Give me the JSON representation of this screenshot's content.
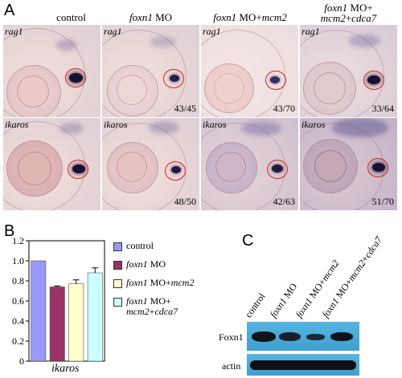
{
  "panel_a": {
    "letter": "A",
    "columns": [
      {
        "label": "control"
      },
      {
        "label_italic": "foxn1",
        "label_rest": " MO"
      },
      {
        "label_italic": "foxn1",
        "label_rest": " MO+",
        "label_italic2": "mcm2"
      },
      {
        "line1_italic": "foxn1",
        "line1_rest": " MO+",
        "line2_italic": "mcm2",
        "line2_rest": "+",
        "line2_italic2": "cdca7"
      }
    ],
    "rows": [
      {
        "gene": "rag1",
        "counts": [
          "",
          "43/45",
          "43/70",
          "33/64"
        ]
      },
      {
        "gene": "ikaros",
        "counts": [
          "",
          "48/50",
          "42/63",
          "51/70"
        ]
      }
    ]
  },
  "panel_b": {
    "letter": "B",
    "chart_data": {
      "type": "bar",
      "categories": [
        "control",
        "foxn1 MO",
        "foxn1 MO+mcm2",
        "foxn1 MO+mcm2+cdca7"
      ],
      "values": [
        1.0,
        0.74,
        0.77,
        0.88
      ],
      "errors": [
        0,
        0.01,
        0.04,
        0.05
      ],
      "colors": [
        "#9999ff",
        "#993366",
        "#ffffcc",
        "#ccffff"
      ],
      "xlabel": "ikaros",
      "ylim": [
        0,
        1.2
      ],
      "yticks": [
        "0",
        "0.2",
        "0.4",
        "0.6",
        "0.8",
        "1.0",
        "1.2"
      ],
      "legend": [
        {
          "text": "control"
        },
        {
          "italic": "foxn1",
          "rest": " MO"
        },
        {
          "italic": "foxn1",
          "rest": " MO+",
          "italic2": "mcm2"
        },
        {
          "italic": "foxn1",
          "rest": " MO+",
          "line2_italic": "mcm2",
          "line2_rest": "+",
          "line2_italic2": "cdca7"
        }
      ]
    }
  },
  "panel_c": {
    "letter": "C",
    "lanes": [
      {
        "text": "control"
      },
      {
        "italic": "foxn1",
        "rest": " MO"
      },
      {
        "italic": "foxn1",
        "rest": " MO+",
        "italic2": "mcm2"
      },
      {
        "italic": "foxn1",
        "rest": " MO+",
        "italic2": "mcm2",
        "rest2": "+",
        "italic3": "cdca7"
      }
    ],
    "rows": [
      {
        "label": "Foxn1"
      },
      {
        "label": "actin"
      }
    ],
    "colors": {
      "blot_bg": "#4aa8d6",
      "band": "#101418"
    }
  }
}
